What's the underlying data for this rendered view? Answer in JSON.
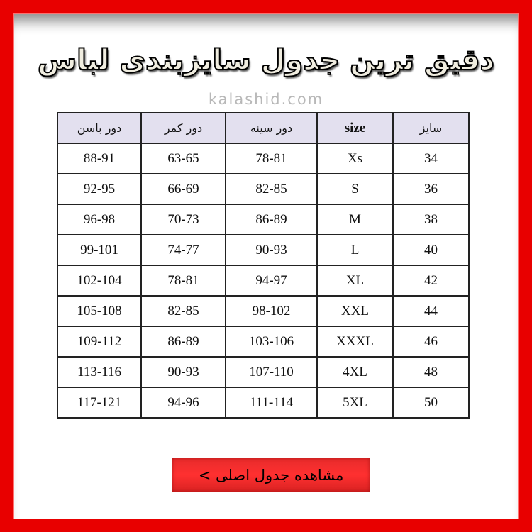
{
  "title": "دقیق ترین جدول سایزبندی لباس",
  "watermark": "kalashid.com",
  "table": {
    "headers": [
      "سایز",
      "size",
      "دور سینه",
      "دور کمر",
      "دور باسن"
    ],
    "rows": [
      [
        "34",
        "Xs",
        "78-81",
        "63-65",
        "88-91"
      ],
      [
        "36",
        "S",
        "82-85",
        "66-69",
        "92-95"
      ],
      [
        "38",
        "M",
        "86-89",
        "70-73",
        "96-98"
      ],
      [
        "40",
        "L",
        "90-93",
        "74-77",
        "99-101"
      ],
      [
        "42",
        "XL",
        "94-97",
        "78-81",
        "102-104"
      ],
      [
        "44",
        "XXL",
        "98-102",
        "82-85",
        "105-108"
      ],
      [
        "46",
        "XXXL",
        "103-106",
        "86-89",
        "109-112"
      ],
      [
        "48",
        "4XL",
        "107-110",
        "90-93",
        "113-116"
      ],
      [
        "50",
        "5XL",
        "111-114",
        "94-96",
        "117-121"
      ]
    ]
  },
  "button": {
    "label": "مشاهده جدول اصلی >"
  },
  "colors": {
    "frame": "#e80000",
    "header_bg": "#e3e0ef",
    "button": "#f02a2a"
  }
}
